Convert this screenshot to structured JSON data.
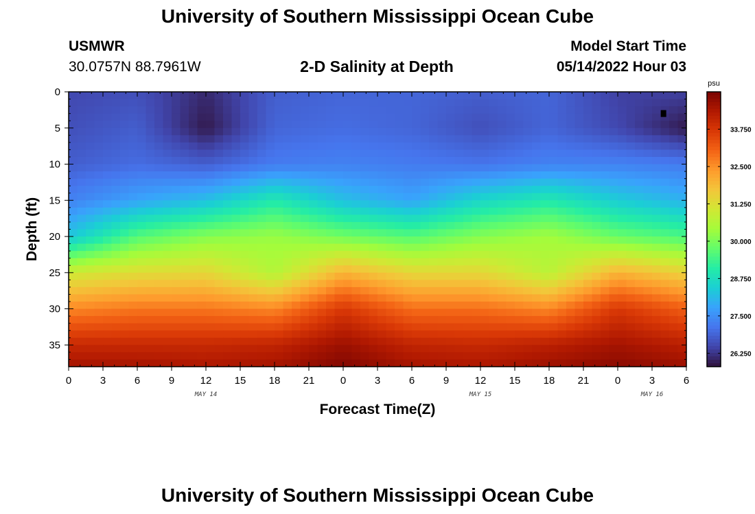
{
  "header": {
    "title": "University of Southern Mississippi Ocean Cube",
    "station_id": "USMWR",
    "coordinates": "30.0757N  88.7961W",
    "subtitle": "2-D Salinity at Depth",
    "model_start_label": "Model Start Time",
    "model_start_time": "05/14/2022 Hour 03"
  },
  "footer": {
    "title": "University of Southern Mississippi Ocean Cube"
  },
  "chart_data": {
    "type": "heatmap",
    "title": "2-D Salinity at Depth",
    "xlabel": "Forecast Time(Z)",
    "ylabel": "Depth (ft)",
    "xlim": [
      0,
      54
    ],
    "ylim": [
      38,
      0
    ],
    "x_tick_labels": [
      "0",
      "3",
      "6",
      "9",
      "12",
      "15",
      "18",
      "21",
      "0",
      "3",
      "6",
      "9",
      "12",
      "15",
      "18",
      "21",
      "0",
      "3",
      "6"
    ],
    "date_labels": [
      {
        "label": "MAY 14",
        "hour": 12
      },
      {
        "label": "MAY 15",
        "hour": 36
      },
      {
        "label": "MAY 16",
        "hour": 51
      }
    ],
    "y_tick_labels": [
      "0",
      "5",
      "10",
      "15",
      "20",
      "25",
      "30",
      "35"
    ],
    "y_ticks": [
      0,
      5,
      10,
      15,
      20,
      25,
      30,
      35
    ],
    "colorbar": {
      "unit": "psu",
      "range": [
        25.8,
        35.0
      ],
      "tick_values": [
        26.25,
        27.5,
        28.75,
        30.0,
        31.25,
        32.5,
        33.75
      ],
      "tick_labels": [
        "26.250",
        "27.500",
        "28.750",
        "30.000",
        "31.250",
        "32.500",
        "33.750"
      ]
    },
    "time_hours": [
      0,
      6,
      12,
      18,
      24,
      30,
      36,
      42,
      48,
      54
    ],
    "depth_ft": [
      0,
      5,
      10,
      15,
      20,
      25,
      30,
      35,
      38
    ],
    "salinity_psu": [
      [
        26.5,
        26.6,
        26.1,
        26.8,
        26.9,
        26.9,
        26.8,
        26.9,
        26.4,
        26.4
      ],
      [
        26.6,
        26.8,
        25.9,
        26.9,
        27.0,
        26.9,
        26.6,
        26.9,
        26.5,
        25.9
      ],
      [
        26.8,
        27.0,
        26.8,
        27.2,
        27.3,
        27.2,
        27.1,
        27.3,
        27.3,
        27.2
      ],
      [
        27.3,
        27.8,
        28.2,
        29.0,
        28.2,
        27.8,
        28.6,
        29.0,
        28.4,
        28.0
      ],
      [
        28.3,
        29.6,
        30.1,
        30.3,
        29.9,
        29.6,
        30.1,
        30.4,
        29.8,
        29.5
      ],
      [
        31.0,
        31.3,
        31.4,
        30.6,
        32.0,
        31.4,
        31.4,
        30.7,
        32.0,
        31.5
      ],
      [
        32.6,
        32.8,
        32.8,
        32.6,
        33.7,
        32.9,
        32.9,
        32.6,
        33.7,
        33.1
      ],
      [
        34.0,
        34.0,
        34.0,
        34.1,
        34.6,
        34.1,
        34.0,
        34.2,
        34.5,
        34.2
      ],
      [
        34.5,
        34.5,
        34.4,
        34.5,
        34.9,
        34.5,
        34.4,
        34.6,
        34.8,
        34.6
      ]
    ],
    "marker": {
      "hour": 52,
      "depth_ft": 3
    }
  },
  "colors": {
    "colormap": [
      "#30123b",
      "#4145ab",
      "#4675ed",
      "#39a2fc",
      "#1bcfd4",
      "#24eca6",
      "#61fc6c",
      "#a4fc3b",
      "#d1e834",
      "#f3c63a",
      "#fe9b2d",
      "#f36315",
      "#d93806",
      "#b11901",
      "#7a0402"
    ]
  }
}
